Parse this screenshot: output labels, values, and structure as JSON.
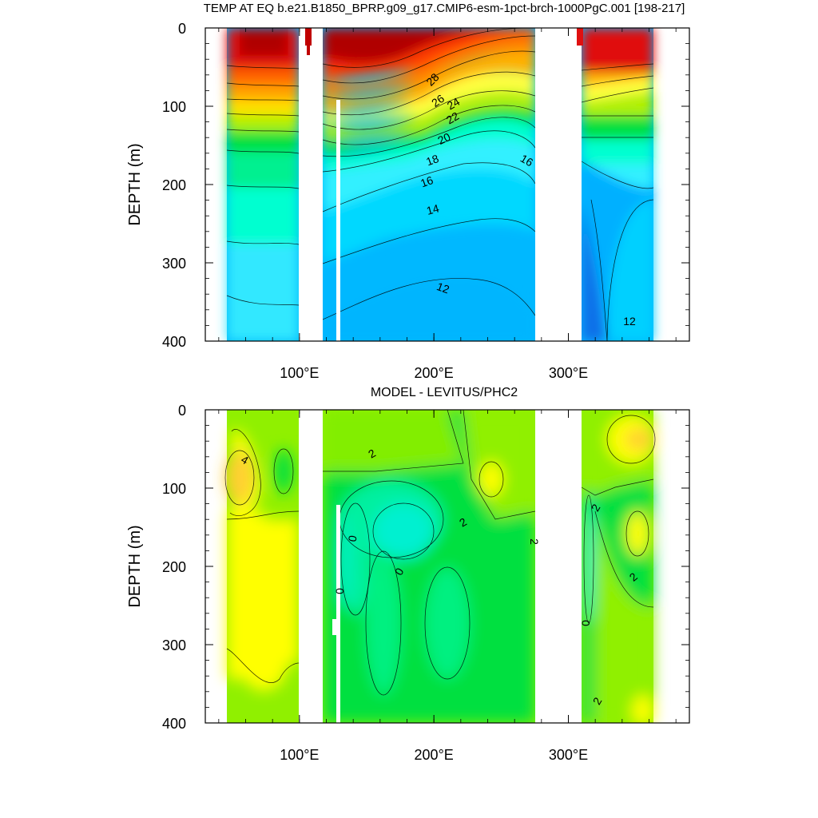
{
  "chart_data": [
    {
      "type": "heatmap",
      "title": "TEMP AT EQ b.e21.B1850_BPRP.g09_g17.CMIP6-esm-1pct-brch-1000PgC.001 [198-217]",
      "ylabel": "DEPTH (m)",
      "xlabel": "",
      "x_ticks": [
        {
          "value": 100,
          "label": "100°E"
        },
        {
          "value": 200,
          "label": "200°E"
        },
        {
          "value": 300,
          "label": "300°E"
        }
      ],
      "y_ticks": [
        0,
        100,
        200,
        300,
        400
      ],
      "xlim": [
        30,
        390
      ],
      "ylim": [
        0,
        400
      ],
      "y_reversed": true,
      "land_gaps": [
        [
          98,
          118
        ],
        [
          129,
          132
        ],
        [
          280,
          314
        ]
      ],
      "data_extent": [
        44,
        370
      ],
      "contour_labels": [
        {
          "text": "28",
          "x": 233,
          "y": 70
        },
        {
          "text": "26",
          "x": 237,
          "y": 95
        },
        {
          "text": "24",
          "x": 247,
          "y": 98
        },
        {
          "text": "22",
          "x": 246,
          "y": 115
        },
        {
          "text": "20",
          "x": 230,
          "y": 140
        },
        {
          "text": "18",
          "x": 212,
          "y": 168
        },
        {
          "text": "16",
          "x": 196,
          "y": 196
        },
        {
          "text": "16",
          "x": 270,
          "y": 168
        },
        {
          "text": "14",
          "x": 201,
          "y": 232
        },
        {
          "text": "12",
          "x": 208,
          "y": 330
        },
        {
          "text": "12",
          "x": 350,
          "y": 375
        }
      ],
      "colors": [
        "#0a60e0",
        "#00a8ff",
        "#00d8ff",
        "#30f0ff",
        "#00ffd0",
        "#00f090",
        "#00e040",
        "#50f020",
        "#b0f000",
        "#ffff40",
        "#ffe000",
        "#ffb000",
        "#ff8000",
        "#ff4000",
        "#e01010",
        "#b00000"
      ]
    },
    {
      "type": "heatmap",
      "title": "MODEL - LEVITUS/PHC2",
      "ylabel": "DEPTH (m)",
      "xlabel": "",
      "x_ticks": [
        {
          "value": 100,
          "label": "100°E"
        },
        {
          "value": 200,
          "label": "200°E"
        },
        {
          "value": 300,
          "label": "300°E"
        }
      ],
      "y_ticks": [
        0,
        100,
        200,
        300,
        400
      ],
      "xlim": [
        30,
        390
      ],
      "ylim": [
        0,
        400
      ],
      "y_reversed": true,
      "land_gaps": [
        [
          98,
          118
        ],
        [
          129,
          132
        ],
        [
          280,
          314
        ]
      ],
      "data_extent": [
        44,
        370
      ],
      "contour_labels": [
        {
          "text": "4",
          "x": 57,
          "y": 62
        },
        {
          "text": "2",
          "x": 160,
          "y": 53
        },
        {
          "text": "0",
          "x": 140,
          "y": 160
        },
        {
          "text": "0",
          "x": 127,
          "y": 232
        },
        {
          "text": "0",
          "x": 168,
          "y": 204
        },
        {
          "text": "2",
          "x": 234,
          "y": 148
        },
        {
          "text": "2",
          "x": 274,
          "y": 167
        },
        {
          "text": "2",
          "x": 326,
          "y": 126
        },
        {
          "text": "2",
          "x": 354,
          "y": 212
        },
        {
          "text": "0",
          "x": 317,
          "y": 272
        },
        {
          "text": "2",
          "x": 327,
          "y": 372
        }
      ],
      "colors": [
        "#00f0d0",
        "#00e080",
        "#00e040",
        "#50f020",
        "#9cf000",
        "#ffff00",
        "#ffd030",
        "#ffa040"
      ]
    }
  ]
}
